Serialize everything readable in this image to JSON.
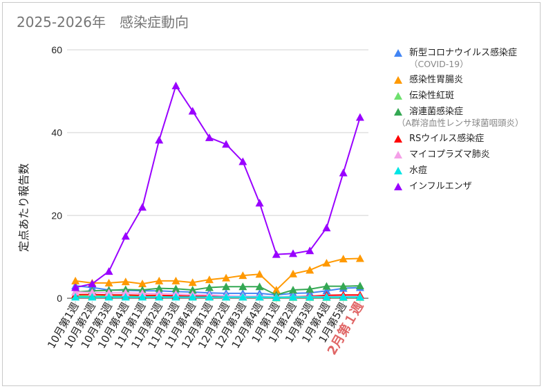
{
  "title": "2025-2026年　感染症動向",
  "chart_data": {
    "type": "line",
    "title": "2025-2026年　感染症動向",
    "ylabel": "定点あたり報告数",
    "xlabel": "",
    "ylim": [
      0,
      60
    ],
    "yticks": [
      0,
      20,
      40,
      60
    ],
    "grid": true,
    "legend_position": "right",
    "marker": "triangle",
    "categories": [
      "10月第1週",
      "10月第2週",
      "10月第3週",
      "10月第4週",
      "11月第1週",
      "11月第2週",
      "11月第3週",
      "11月第4週",
      "12月第1週",
      "12月第2週",
      "12月第3週",
      "12月第4週",
      "1月第1週",
      "1月第2週",
      "1月第3週",
      "1月第4週",
      "1月第5週",
      "2月第1週"
    ],
    "highlight_category": {
      "label": "2月第１週",
      "color": "#e06666"
    },
    "series": [
      {
        "name": "新型コロナウイルス感染症",
        "sub": "（COVID-19）",
        "color": "#4285f4",
        "values": [
          3.0,
          2.6,
          2.0,
          1.9,
          1.8,
          1.8,
          1.6,
          1.5,
          1.3,
          1.2,
          1.2,
          1.2,
          0.8,
          1.2,
          1.3,
          1.8,
          2.4,
          2.6
        ]
      },
      {
        "name": "感染性胃腸炎",
        "color": "#ff9900",
        "values": [
          4.2,
          3.7,
          3.7,
          4.0,
          3.5,
          4.2,
          4.2,
          3.8,
          4.5,
          4.9,
          5.5,
          5.8,
          2.0,
          5.9,
          6.8,
          8.5,
          9.5,
          9.6
        ]
      },
      {
        "name": "伝染性紅斑",
        "color": "#6ee06e",
        "values": [
          0.6,
          0.5,
          0.5,
          0.5,
          0.4,
          0.4,
          0.4,
          0.3,
          0.3,
          0.3,
          0.3,
          0.3,
          0.1,
          0.2,
          0.2,
          0.2,
          0.2,
          0.2
        ]
      },
      {
        "name": "溶連菌感染症",
        "sub": "（A群溶血性レンサ球菌咽頭炎）",
        "color": "#34a853",
        "values": [
          1.5,
          1.8,
          1.9,
          2.1,
          2.0,
          2.4,
          2.3,
          2.0,
          2.6,
          2.8,
          2.8,
          2.8,
          0.8,
          2.0,
          2.2,
          2.9,
          2.9,
          3.0
        ]
      },
      {
        "name": "RSウイルス感染症",
        "color": "#ff0000",
        "values": [
          0.9,
          0.9,
          0.8,
          0.8,
          0.7,
          0.7,
          0.6,
          0.5,
          0.5,
          0.4,
          0.4,
          0.4,
          0.3,
          0.4,
          0.5,
          0.7,
          0.8,
          0.8
        ]
      },
      {
        "name": "マイコプラズマ肺炎",
        "color": "#f4a0e8",
        "values": [
          1.5,
          1.4,
          1.3,
          1.3,
          1.2,
          1.1,
          1.0,
          0.9,
          0.8,
          0.6,
          0.5,
          0.5,
          0.3,
          0.4,
          0.4,
          0.4,
          0.4,
          0.4
        ]
      },
      {
        "name": "水痘",
        "color": "#00e5e5",
        "values": [
          0.3,
          0.3,
          0.3,
          0.3,
          0.3,
          0.3,
          0.3,
          0.3,
          0.3,
          0.3,
          0.3,
          0.3,
          0.2,
          0.3,
          0.3,
          0.3,
          0.3,
          0.3
        ]
      },
      {
        "name": "インフルエンザ",
        "color": "#9900ff",
        "values": [
          2.6,
          3.5,
          6.5,
          15.0,
          22.0,
          38.2,
          51.3,
          45.2,
          38.8,
          37.2,
          33.0,
          23.0,
          10.6,
          10.8,
          11.5,
          17.0,
          30.3,
          43.7
        ]
      }
    ]
  }
}
